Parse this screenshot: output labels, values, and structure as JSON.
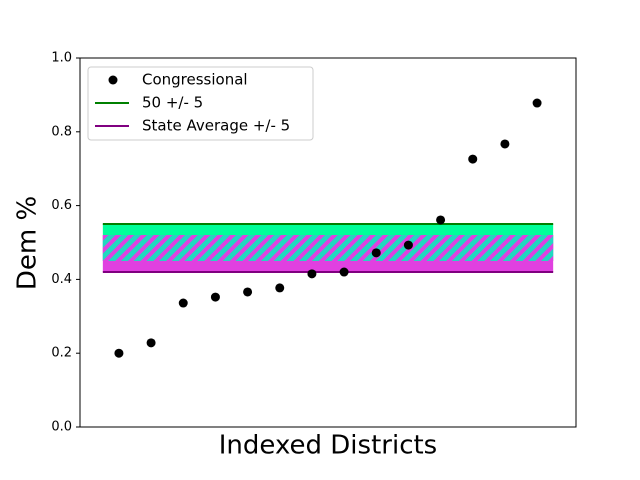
{
  "chart_data": {
    "type": "scatter",
    "xlabel": "Indexed Districts",
    "ylabel": "Dem %",
    "x": [
      1,
      2,
      3,
      4,
      5,
      6,
      7,
      8,
      9,
      10,
      11,
      12,
      13,
      14
    ],
    "xlim": [
      -0.21,
      15.21
    ],
    "ylim": [
      0,
      1
    ],
    "yticks": [
      {
        "value": 0,
        "label": "0.0"
      },
      0.2,
      0.4,
      0.6,
      0.8,
      {
        "value": 1,
        "label": "1.0"
      }
    ],
    "series": [
      {
        "name": "Congressional",
        "color": "#000000",
        "values": [
          0.2,
          0.228,
          0.336,
          0.352,
          0.366,
          0.377,
          0.415,
          0.42,
          0.472,
          0.493,
          0.561,
          0.726,
          0.767,
          0.878
        ]
      }
    ],
    "bands": [
      {
        "name": "50 +/- 5",
        "color": "#008000",
        "fill": "#00ff99",
        "range": [
          0.45,
          0.55
        ],
        "xrange": [
          0.5,
          14.5
        ]
      },
      {
        "name": "State Average +/- 5",
        "color": "#800080",
        "fill": "#e040e0",
        "range": [
          0.42,
          0.52
        ],
        "xrange": [
          0.5,
          14.5
        ]
      }
    ],
    "legend": "upper left"
  }
}
